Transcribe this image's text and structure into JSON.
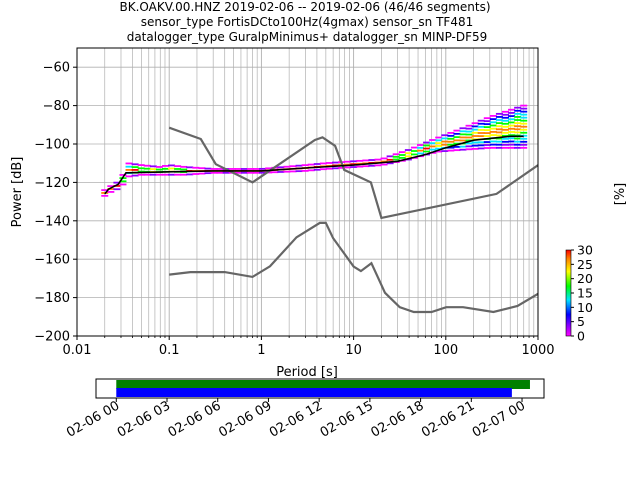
{
  "header": {
    "line1": "BK.OAKV.00.HNZ   2019-02-06 -- 2019-02-06  (46/46 segments)",
    "line2": "sensor_type FortisDCto100Hz(4gmax) sensor_sn TF481",
    "line3": "datalogger_type GuralpMinimus+ datalogger_sn MINP-DF59"
  },
  "chart_data": [
    {
      "type": "heatmap",
      "subtype": "probabilistic-power-spectral-density",
      "xlabel": "Period [s]",
      "ylabel": "Power [dB]",
      "xscale": "log",
      "xlim": [
        0.01,
        1000
      ],
      "ylim": [
        -200,
        -50
      ],
      "xticks": [
        {
          "value": 0.01,
          "label": "0.01"
        },
        {
          "value": 0.1,
          "label": "0.1"
        },
        {
          "value": 1,
          "label": "1"
        },
        {
          "value": 10,
          "label": "10"
        },
        {
          "value": 100,
          "label": "100"
        },
        {
          "value": 1000,
          "label": "1000"
        }
      ],
      "yticks": [
        {
          "value": -60,
          "label": "−60"
        },
        {
          "value": -80,
          "label": "−80"
        },
        {
          "value": -100,
          "label": "−100"
        },
        {
          "value": -120,
          "label": "−120"
        },
        {
          "value": -140,
          "label": "−140"
        },
        {
          "value": -160,
          "label": "−160"
        },
        {
          "value": -180,
          "label": "−180"
        },
        {
          "value": -200,
          "label": "−200"
        }
      ],
      "grid": true,
      "noise_model_high": [
        [
          0.1,
          -91.5
        ],
        [
          0.22,
          -97.4
        ],
        [
          0.32,
          -110.5
        ],
        [
          0.8,
          -120
        ],
        [
          3.8,
          -97.9
        ],
        [
          4.6,
          -96.5
        ],
        [
          6.3,
          -101
        ],
        [
          7.9,
          -113.5
        ],
        [
          15.4,
          -120
        ],
        [
          20,
          -138.5
        ],
        [
          354.8,
          -126
        ],
        [
          1000,
          -111
        ]
      ],
      "noise_model_low": [
        [
          0.1,
          -168
        ],
        [
          0.17,
          -166.7
        ],
        [
          0.4,
          -166.7
        ],
        [
          0.8,
          -169.2
        ],
        [
          1.24,
          -163.7
        ],
        [
          2.4,
          -148.6
        ],
        [
          4.3,
          -141.1
        ],
        [
          5,
          -141.1
        ],
        [
          6,
          -149
        ],
        [
          10,
          -163.8
        ],
        [
          12,
          -166.2
        ],
        [
          15.6,
          -162.1
        ],
        [
          21.9,
          -177.5
        ],
        [
          31.6,
          -185
        ],
        [
          45,
          -187.5
        ],
        [
          70,
          -187.5
        ],
        [
          101,
          -185
        ],
        [
          154,
          -185
        ],
        [
          328,
          -187.5
        ],
        [
          600,
          -184.4
        ],
        [
          1000,
          -178
        ]
      ],
      "mean_curve": [
        [
          0.02,
          -126
        ],
        [
          0.022,
          -123.5
        ],
        [
          0.028,
          -121
        ],
        [
          0.034,
          -115
        ],
        [
          0.1,
          -114.5
        ],
        [
          0.3,
          -114
        ],
        [
          1,
          -114
        ],
        [
          3,
          -112.5
        ],
        [
          10,
          -111
        ],
        [
          30,
          -109
        ],
        [
          60,
          -105.5
        ],
        [
          100,
          -102
        ],
        [
          200,
          -98
        ],
        [
          500,
          -96
        ],
        [
          700,
          -96
        ]
      ],
      "psd_spread": [
        {
          "p": 0.02,
          "lo": -127,
          "hi": -124
        },
        {
          "p": 0.025,
          "lo": -124,
          "hi": -121
        },
        {
          "p": 0.03,
          "lo": -123,
          "hi": -119
        },
        {
          "p": 0.035,
          "lo": -117,
          "hi": -110
        },
        {
          "p": 0.05,
          "lo": -116,
          "hi": -111
        },
        {
          "p": 0.08,
          "lo": -116,
          "hi": -112
        },
        {
          "p": 0.1,
          "lo": -116,
          "hi": -111
        },
        {
          "p": 0.15,
          "lo": -116,
          "hi": -112
        },
        {
          "p": 0.3,
          "lo": -115,
          "hi": -113
        },
        {
          "p": 1,
          "lo": -115,
          "hi": -113
        },
        {
          "p": 3,
          "lo": -114,
          "hi": -111
        },
        {
          "p": 5,
          "lo": -113,
          "hi": -110
        },
        {
          "p": 10,
          "lo": -112,
          "hi": -109
        },
        {
          "p": 20,
          "lo": -111,
          "hi": -108
        },
        {
          "p": 40,
          "lo": -108,
          "hi": -103
        },
        {
          "p": 80,
          "lo": -104,
          "hi": -97
        },
        {
          "p": 150,
          "lo": -103,
          "hi": -92
        },
        {
          "p": 300,
          "lo": -102,
          "hi": -86
        },
        {
          "p": 700,
          "lo": -102,
          "hi": -80
        }
      ]
    },
    {
      "type": "bar",
      "subtype": "data-availability-timeline",
      "xticks": [
        "02-06 00",
        "02-06 03",
        "02-06 06",
        "02-06 09",
        "02-06 12",
        "02-06 15",
        "02-06 18",
        "02-06 21",
        "02-07 00"
      ],
      "xlim_hours": [
        -1.2,
        25.3
      ],
      "series": [
        {
          "color": "#008000",
          "start_hour": 0,
          "end_hour": 24.47
        },
        {
          "color": "#0000ff",
          "start_hour": 0,
          "end_hour": 23.4
        }
      ]
    }
  ],
  "colorbar": {
    "label": "[%]",
    "ticks": [
      "0",
      "5",
      "10",
      "15",
      "20",
      "25",
      "30"
    ],
    "range": [
      0,
      30
    ]
  }
}
